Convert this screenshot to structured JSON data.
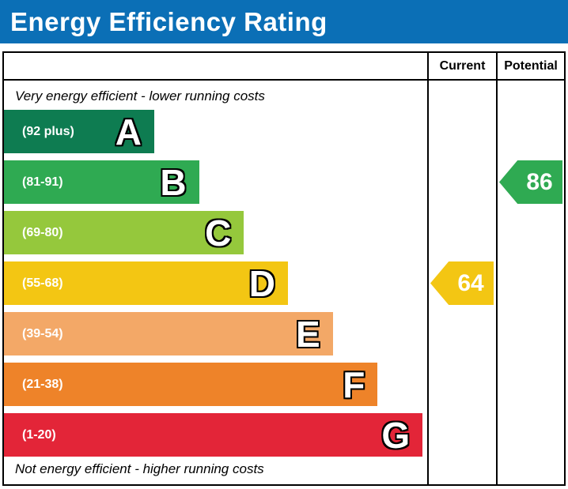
{
  "header": {
    "title": "Energy Efficiency Rating"
  },
  "table": {
    "columns": {
      "current": "Current",
      "potential": "Potential"
    }
  },
  "chart_data": {
    "type": "bar",
    "subtype": "epc-energy-efficiency-rating",
    "title": "Energy Efficiency Rating",
    "top_note": "Very energy efficient - lower running costs",
    "bottom_note": "Not energy efficient - higher running costs",
    "bands": [
      {
        "letter": "A",
        "range_label": "(92 plus)",
        "min": 92,
        "max": 100,
        "color": "#0e7c51",
        "width_pct": 35.5
      },
      {
        "letter": "B",
        "range_label": "(81-91)",
        "min": 81,
        "max": 91,
        "color": "#2faa52",
        "width_pct": 46.1
      },
      {
        "letter": "C",
        "range_label": "(69-80)",
        "min": 69,
        "max": 80,
        "color": "#95c83c",
        "width_pct": 56.7
      },
      {
        "letter": "D",
        "range_label": "(55-68)",
        "min": 55,
        "max": 68,
        "color": "#f3c613",
        "width_pct": 67.1
      },
      {
        "letter": "E",
        "range_label": "(39-54)",
        "min": 39,
        "max": 54,
        "color": "#f3a867",
        "width_pct": 77.7
      },
      {
        "letter": "F",
        "range_label": "(21-38)",
        "min": 21,
        "max": 38,
        "color": "#ee8329",
        "width_pct": 88.3
      },
      {
        "letter": "G",
        "range_label": "(1-20)",
        "min": 1,
        "max": 20,
        "color": "#e32538",
        "width_pct": 98.9
      }
    ],
    "current": {
      "value": 64,
      "band": "D",
      "band_index": 3,
      "color": "#f3c613"
    },
    "potential": {
      "value": 86,
      "band": "B",
      "band_index": 1,
      "color": "#2faa52"
    }
  },
  "colors": {
    "header_bg": "#0b6fb6",
    "table_border": "#000000",
    "page_bg": "#ffffff"
  }
}
